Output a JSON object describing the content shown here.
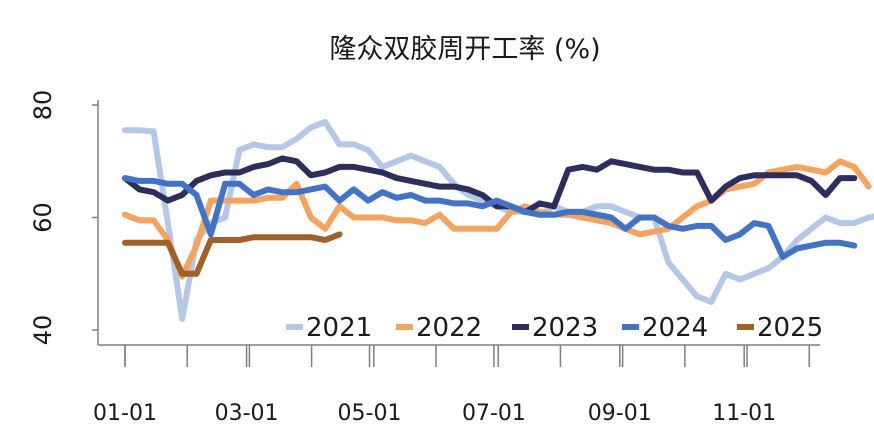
{
  "chart_data": {
    "type": "line",
    "title": "隆众双胶周开工率 (%)",
    "xlabel": "",
    "ylabel": "",
    "ylim": [
      40,
      80
    ],
    "yticks": [
      40,
      60,
      80
    ],
    "xlim": [
      1,
      52
    ],
    "xticks": [
      {
        "label": "01-01",
        "week": 1
      },
      {
        "label": "03-01",
        "week": 9.5
      },
      {
        "label": "05-01",
        "week": 18.1
      },
      {
        "label": "07-01",
        "week": 26.8
      },
      {
        "label": "09-01",
        "week": 35.6
      },
      {
        "label": "11-01",
        "week": 44.3
      }
    ],
    "grid": false,
    "legend": "bottom-right",
    "series": [
      {
        "name": "2021",
        "color": "#b4c7e7",
        "points": [
          [
            1,
            75.5
          ],
          [
            2,
            75.5
          ],
          [
            3,
            75.3
          ],
          [
            4,
            59
          ],
          [
            5,
            42
          ],
          [
            6,
            56
          ],
          [
            7,
            59
          ],
          [
            8,
            60
          ],
          [
            9,
            72
          ],
          [
            10,
            73
          ],
          [
            11,
            72.5
          ],
          [
            12,
            72.5
          ],
          [
            13,
            74
          ],
          [
            14,
            76
          ],
          [
            15,
            77
          ],
          [
            16,
            73
          ],
          [
            17,
            73
          ],
          [
            18,
            72
          ],
          [
            19,
            69
          ],
          [
            20,
            70
          ],
          [
            21,
            71
          ],
          [
            22,
            70
          ],
          [
            23,
            69
          ],
          [
            24,
            66
          ],
          [
            25,
            64
          ],
          [
            26,
            63
          ],
          [
            27,
            62
          ],
          [
            28,
            61
          ],
          [
            29,
            61
          ],
          [
            30,
            60.5
          ],
          [
            31,
            62
          ],
          [
            32,
            61
          ],
          [
            33,
            61
          ],
          [
            34,
            62
          ],
          [
            35,
            62
          ],
          [
            36,
            61
          ],
          [
            37,
            60
          ],
          [
            38,
            60
          ],
          [
            39,
            52
          ],
          [
            40,
            49
          ],
          [
            41,
            46
          ],
          [
            42,
            45
          ],
          [
            43,
            50
          ],
          [
            44,
            49
          ],
          [
            45,
            50
          ],
          [
            46,
            51
          ],
          [
            47,
            53
          ],
          [
            48,
            56
          ],
          [
            49,
            58
          ],
          [
            50,
            60
          ],
          [
            51,
            59
          ],
          [
            52,
            59
          ],
          [
            53,
            60
          ],
          [
            54,
            60.5
          ]
        ]
      },
      {
        "name": "2022",
        "color": "#f4a460",
        "points": [
          [
            1,
            60.5
          ],
          [
            2,
            59.5
          ],
          [
            3,
            59.5
          ],
          [
            4,
            56
          ],
          [
            5,
            49.5
          ],
          [
            6,
            55
          ],
          [
            7,
            63
          ],
          [
            8,
            63
          ],
          [
            9,
            63
          ],
          [
            10,
            63
          ],
          [
            11,
            63.5
          ],
          [
            12,
            63.5
          ],
          [
            13,
            66
          ],
          [
            14,
            60
          ],
          [
            15,
            58
          ],
          [
            16,
            62
          ],
          [
            17,
            60
          ],
          [
            18,
            60
          ],
          [
            19,
            60
          ],
          [
            20,
            59.5
          ],
          [
            21,
            59.5
          ],
          [
            22,
            59
          ],
          [
            23,
            60.5
          ],
          [
            24,
            58
          ],
          [
            25,
            58
          ],
          [
            26,
            58
          ],
          [
            27,
            58
          ],
          [
            28,
            61
          ],
          [
            29,
            62
          ],
          [
            30,
            61
          ],
          [
            31,
            60.5
          ],
          [
            32,
            60.5
          ],
          [
            33,
            60
          ],
          [
            34,
            59.5
          ],
          [
            35,
            59
          ],
          [
            36,
            58
          ],
          [
            37,
            57
          ],
          [
            38,
            57.5
          ],
          [
            39,
            58
          ],
          [
            40,
            60
          ],
          [
            41,
            62
          ],
          [
            42,
            63
          ],
          [
            43,
            65
          ],
          [
            44,
            65.5
          ],
          [
            45,
            66
          ],
          [
            46,
            68
          ],
          [
            47,
            68.5
          ],
          [
            48,
            69
          ],
          [
            49,
            68.5
          ],
          [
            50,
            68
          ],
          [
            51,
            70
          ],
          [
            52,
            69
          ],
          [
            53,
            65.5
          ]
        ]
      },
      {
        "name": "2023",
        "color": "#2e2e5c",
        "points": [
          [
            1,
            67
          ],
          [
            2,
            65
          ],
          [
            3,
            64.5
          ],
          [
            4,
            63
          ],
          [
            5,
            64
          ],
          [
            6,
            66.5
          ],
          [
            7,
            67.5
          ],
          [
            8,
            68
          ],
          [
            9,
            68
          ],
          [
            10,
            69
          ],
          [
            11,
            69.5
          ],
          [
            12,
            70.5
          ],
          [
            13,
            70
          ],
          [
            14,
            67.5
          ],
          [
            15,
            68
          ],
          [
            16,
            69
          ],
          [
            17,
            69
          ],
          [
            18,
            68.5
          ],
          [
            19,
            68
          ],
          [
            20,
            67
          ],
          [
            21,
            66.5
          ],
          [
            22,
            66
          ],
          [
            23,
            65.5
          ],
          [
            24,
            65.5
          ],
          [
            25,
            65
          ],
          [
            26,
            64
          ],
          [
            27,
            62
          ],
          [
            28,
            62
          ],
          [
            29,
            61
          ],
          [
            30,
            62.5
          ],
          [
            31,
            62
          ],
          [
            32,
            68.5
          ],
          [
            33,
            69
          ],
          [
            34,
            68.5
          ],
          [
            35,
            70
          ],
          [
            36,
            69.5
          ],
          [
            37,
            69
          ],
          [
            38,
            68.5
          ],
          [
            39,
            68.5
          ],
          [
            40,
            68
          ],
          [
            41,
            68
          ],
          [
            42,
            63
          ],
          [
            43,
            65.5
          ],
          [
            44,
            67
          ],
          [
            45,
            67.5
          ],
          [
            46,
            67.5
          ],
          [
            47,
            67.5
          ],
          [
            48,
            67.5
          ],
          [
            49,
            66.5
          ],
          [
            50,
            64
          ],
          [
            51,
            67
          ],
          [
            52,
            67
          ]
        ]
      },
      {
        "name": "2024",
        "color": "#4472c4",
        "points": [
          [
            1,
            67
          ],
          [
            2,
            66.5
          ],
          [
            3,
            66.5
          ],
          [
            4,
            66
          ],
          [
            5,
            66
          ],
          [
            6,
            64
          ],
          [
            7,
            57
          ],
          [
            8,
            66
          ],
          [
            9,
            66
          ],
          [
            10,
            64
          ],
          [
            11,
            65
          ],
          [
            12,
            64.5
          ],
          [
            13,
            64.5
          ],
          [
            14,
            65
          ],
          [
            15,
            65.5
          ],
          [
            16,
            63
          ],
          [
            17,
            65
          ],
          [
            18,
            63
          ],
          [
            19,
            64.5
          ],
          [
            20,
            63.5
          ],
          [
            21,
            64
          ],
          [
            22,
            63
          ],
          [
            23,
            63
          ],
          [
            24,
            62.5
          ],
          [
            25,
            62.5
          ],
          [
            26,
            62
          ],
          [
            27,
            63
          ],
          [
            28,
            62
          ],
          [
            29,
            61
          ],
          [
            30,
            60.5
          ],
          [
            31,
            60.5
          ],
          [
            32,
            61
          ],
          [
            33,
            61
          ],
          [
            34,
            60.5
          ],
          [
            35,
            60
          ],
          [
            36,
            58
          ],
          [
            37,
            60
          ],
          [
            38,
            60
          ],
          [
            39,
            58.5
          ],
          [
            40,
            58
          ],
          [
            41,
            58.5
          ],
          [
            42,
            58.5
          ],
          [
            43,
            56
          ],
          [
            44,
            57
          ],
          [
            45,
            59
          ],
          [
            46,
            58.5
          ],
          [
            47,
            53
          ],
          [
            48,
            54.5
          ],
          [
            49,
            55
          ],
          [
            50,
            55.5
          ],
          [
            51,
            55.5
          ],
          [
            52,
            55
          ]
        ]
      },
      {
        "name": "2025",
        "color": "#a0602a",
        "points": [
          [
            1,
            55.5
          ],
          [
            2,
            55.5
          ],
          [
            3,
            55.5
          ],
          [
            4,
            55.5
          ],
          [
            5,
            50
          ],
          [
            6,
            50
          ],
          [
            7,
            56
          ],
          [
            8,
            56
          ],
          [
            9,
            56
          ],
          [
            10,
            56.5
          ],
          [
            11,
            56.5
          ],
          [
            12,
            56.5
          ],
          [
            13,
            56.5
          ],
          [
            14,
            56.5
          ],
          [
            15,
            56
          ],
          [
            16,
            57
          ]
        ]
      }
    ]
  }
}
